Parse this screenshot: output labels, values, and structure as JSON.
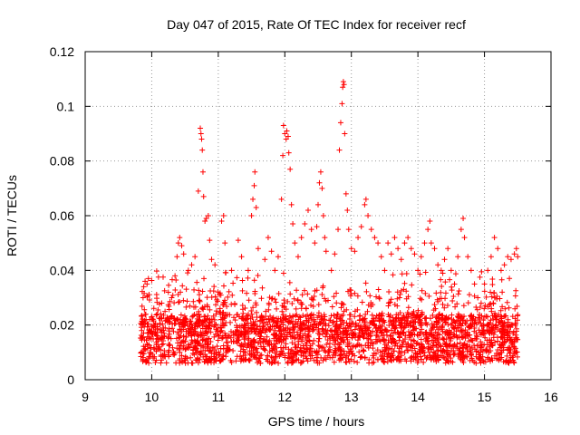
{
  "chart_data": {
    "type": "scatter",
    "title": "Day 047 of 2015, Rate Of TEC Index for receiver recf",
    "xlabel": "GPS time / hours",
    "ylabel": "ROTI / TECUs",
    "xlim": [
      9,
      16
    ],
    "ylim": [
      0,
      0.12
    ],
    "xticks": [
      9,
      10,
      11,
      12,
      13,
      14,
      15,
      16
    ],
    "yticks": [
      0,
      0.02,
      0.04,
      0.06,
      0.08,
      0.1,
      0.12
    ],
    "xtick_labels": [
      "9",
      "10",
      "11",
      "12",
      "13",
      "14",
      "15",
      "16"
    ],
    "ytick_labels": [
      "0",
      "0.02",
      "0.04",
      "0.06",
      "0.08",
      "0.1",
      "0.12"
    ],
    "grid": true,
    "marker": "+",
    "color": "#ff0000",
    "data_range": {
      "x_start": 9.83,
      "x_end": 15.5
    },
    "series": [
      {
        "name": "ROTI",
        "points": [
          [
            9.85,
            0.018
          ],
          [
            9.87,
            0.03
          ],
          [
            9.88,
            0.034
          ],
          [
            9.9,
            0.036
          ],
          [
            9.93,
            0.035
          ],
          [
            9.95,
            0.037
          ],
          [
            9.97,
            0.022
          ],
          [
            9.99,
            0.015
          ],
          [
            10.05,
            0.02
          ],
          [
            10.1,
            0.012
          ],
          [
            10.15,
            0.028
          ],
          [
            10.2,
            0.025
          ],
          [
            10.25,
            0.032
          ],
          [
            10.3,
            0.03
          ],
          [
            10.35,
            0.038
          ],
          [
            10.38,
            0.045
          ],
          [
            10.4,
            0.05
          ],
          [
            10.42,
            0.052
          ],
          [
            10.45,
            0.049
          ],
          [
            10.48,
            0.046
          ],
          [
            10.55,
            0.04
          ],
          [
            10.6,
            0.042
          ],
          [
            10.65,
            0.045
          ],
          [
            10.7,
            0.069
          ],
          [
            10.73,
            0.092
          ],
          [
            10.74,
            0.09
          ],
          [
            10.75,
            0.088
          ],
          [
            10.76,
            0.084
          ],
          [
            10.77,
            0.076
          ],
          [
            10.78,
            0.067
          ],
          [
            10.8,
            0.058
          ],
          [
            10.82,
            0.059
          ],
          [
            10.85,
            0.06
          ],
          [
            10.87,
            0.051
          ],
          [
            10.9,
            0.044
          ],
          [
            10.95,
            0.042
          ],
          [
            11.05,
            0.058
          ],
          [
            11.08,
            0.06
          ],
          [
            11.1,
            0.05
          ],
          [
            11.2,
            0.04
          ],
          [
            11.3,
            0.051
          ],
          [
            11.35,
            0.045
          ],
          [
            11.45,
            0.04
          ],
          [
            11.5,
            0.06
          ],
          [
            11.52,
            0.066
          ],
          [
            11.54,
            0.071
          ],
          [
            11.55,
            0.076
          ],
          [
            11.57,
            0.063
          ],
          [
            11.6,
            0.048
          ],
          [
            11.7,
            0.044
          ],
          [
            11.75,
            0.052
          ],
          [
            11.8,
            0.047
          ],
          [
            11.85,
            0.04
          ],
          [
            11.9,
            0.045
          ],
          [
            11.95,
            0.066
          ],
          [
            11.97,
            0.082
          ],
          [
            11.98,
            0.093
          ],
          [
            12.0,
            0.09
          ],
          [
            12.02,
            0.088
          ],
          [
            12.03,
            0.091
          ],
          [
            12.05,
            0.089
          ],
          [
            12.06,
            0.083
          ],
          [
            12.08,
            0.077
          ],
          [
            12.1,
            0.064
          ],
          [
            12.12,
            0.057
          ],
          [
            12.15,
            0.05
          ],
          [
            12.2,
            0.045
          ],
          [
            12.25,
            0.052
          ],
          [
            12.3,
            0.057
          ],
          [
            12.35,
            0.062
          ],
          [
            12.4,
            0.055
          ],
          [
            12.45,
            0.05
          ],
          [
            12.48,
            0.056
          ],
          [
            12.5,
            0.064
          ],
          [
            12.52,
            0.072
          ],
          [
            12.54,
            0.076
          ],
          [
            12.56,
            0.07
          ],
          [
            12.58,
            0.06
          ],
          [
            12.6,
            0.052
          ],
          [
            12.62,
            0.047
          ],
          [
            12.7,
            0.04
          ],
          [
            12.75,
            0.046
          ],
          [
            12.8,
            0.055
          ],
          [
            12.82,
            0.084
          ],
          [
            12.84,
            0.094
          ],
          [
            12.86,
            0.101
          ],
          [
            12.87,
            0.107
          ],
          [
            12.88,
            0.109
          ],
          [
            12.89,
            0.108
          ],
          [
            12.9,
            0.09
          ],
          [
            12.92,
            0.068
          ],
          [
            12.94,
            0.062
          ],
          [
            12.96,
            0.055
          ],
          [
            13.0,
            0.048
          ],
          [
            13.05,
            0.047
          ],
          [
            13.1,
            0.052
          ],
          [
            13.15,
            0.056
          ],
          [
            13.2,
            0.064
          ],
          [
            13.22,
            0.066
          ],
          [
            13.25,
            0.06
          ],
          [
            13.3,
            0.055
          ],
          [
            13.35,
            0.052
          ],
          [
            13.4,
            0.05
          ],
          [
            13.45,
            0.045
          ],
          [
            13.5,
            0.04
          ],
          [
            13.55,
            0.05
          ],
          [
            13.6,
            0.046
          ],
          [
            13.65,
            0.052
          ],
          [
            13.7,
            0.048
          ],
          [
            13.75,
            0.044
          ],
          [
            13.8,
            0.05
          ],
          [
            13.85,
            0.052
          ],
          [
            13.9,
            0.048
          ],
          [
            13.95,
            0.046
          ],
          [
            14.0,
            0.04
          ],
          [
            14.05,
            0.045
          ],
          [
            14.1,
            0.05
          ],
          [
            14.15,
            0.055
          ],
          [
            14.18,
            0.058
          ],
          [
            14.2,
            0.05
          ],
          [
            14.25,
            0.048
          ],
          [
            14.3,
            0.042
          ],
          [
            14.35,
            0.04
          ],
          [
            14.4,
            0.044
          ],
          [
            14.45,
            0.048
          ],
          [
            14.5,
            0.04
          ],
          [
            14.55,
            0.035
          ],
          [
            14.6,
            0.045
          ],
          [
            14.65,
            0.055
          ],
          [
            14.68,
            0.059
          ],
          [
            14.7,
            0.052
          ],
          [
            14.75,
            0.045
          ],
          [
            14.8,
            0.04
          ],
          [
            14.85,
            0.035
          ],
          [
            14.9,
            0.03
          ],
          [
            14.95,
            0.028
          ],
          [
            15.0,
            0.035
          ],
          [
            15.05,
            0.04
          ],
          [
            15.1,
            0.045
          ],
          [
            15.15,
            0.052
          ],
          [
            15.2,
            0.048
          ],
          [
            15.25,
            0.04
          ],
          [
            15.3,
            0.042
          ],
          [
            15.35,
            0.045
          ],
          [
            15.4,
            0.044
          ],
          [
            15.45,
            0.046
          ],
          [
            15.48,
            0.048
          ],
          [
            15.5,
            0.045
          ]
        ]
      }
    ]
  }
}
